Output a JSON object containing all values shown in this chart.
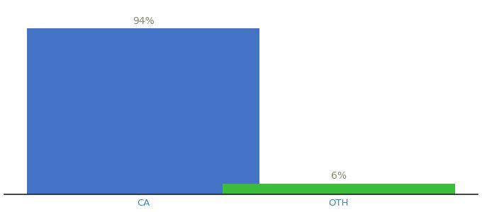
{
  "categories": [
    "CA",
    "OTH"
  ],
  "values": [
    94,
    6
  ],
  "bar_colors": [
    "#4472c4",
    "#3dbb3d"
  ],
  "label_texts": [
    "94%",
    "6%"
  ],
  "background_color": "#ffffff",
  "ylim": [
    0,
    108
  ],
  "bar_width": 0.5,
  "label_fontsize": 10,
  "tick_fontsize": 9.5,
  "label_color": "#888877",
  "tick_color": "#4488aa",
  "spine_color": "#222222"
}
